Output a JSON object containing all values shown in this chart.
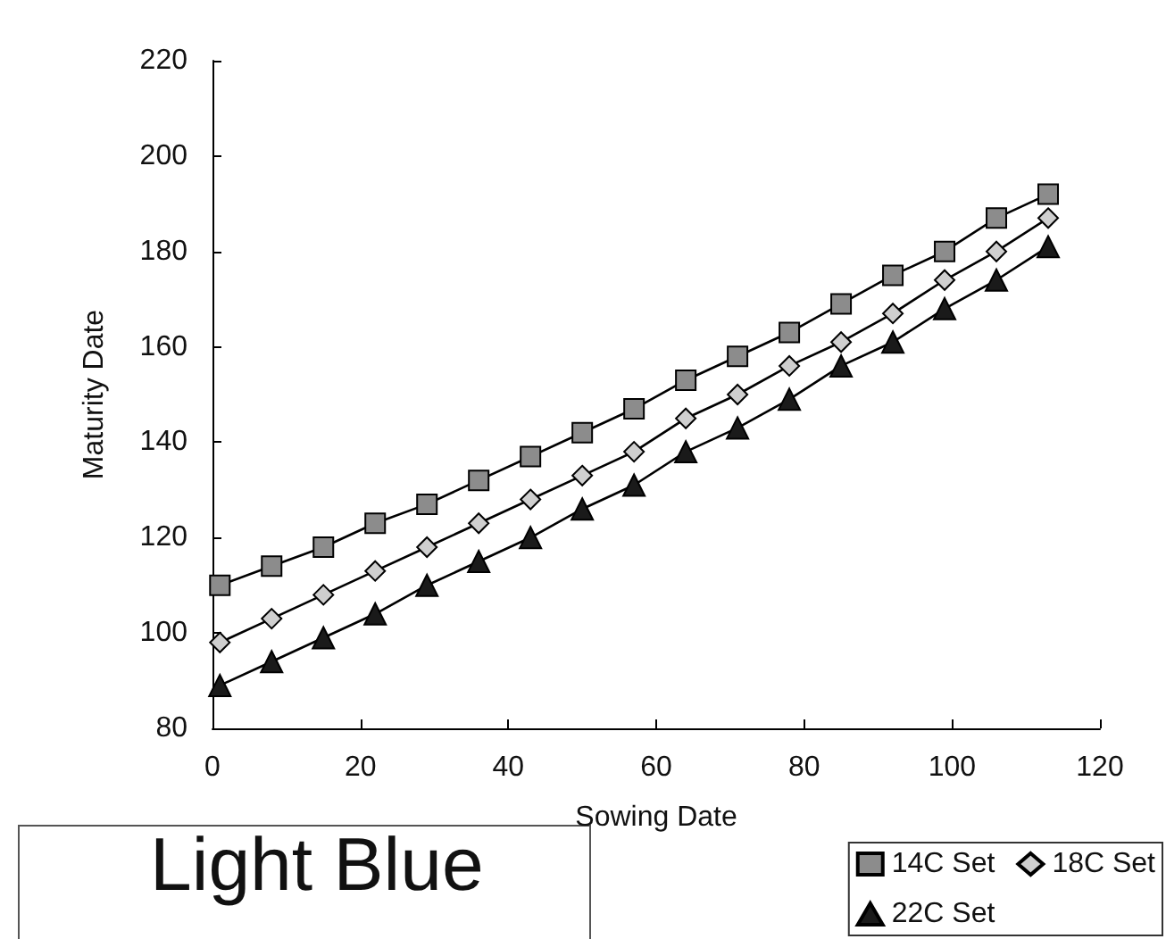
{
  "chart_data": {
    "type": "line",
    "xlabel": "Sowing Date",
    "ylabel": "Maturity Date",
    "x": [
      1,
      8,
      15,
      22,
      29,
      36,
      43,
      50,
      57,
      64,
      71,
      78,
      85,
      92,
      99,
      106,
      113
    ],
    "series": [
      {
        "name": "14C Set",
        "color": "#8c8c8c",
        "marker": "square",
        "values": [
          110,
          114,
          118,
          123,
          127,
          132,
          137,
          142,
          147,
          153,
          158,
          163,
          169,
          175,
          180,
          187,
          192
        ]
      },
      {
        "name": "18C Set",
        "color": "#cfcfcf",
        "marker": "diamond",
        "values": [
          98,
          103,
          108,
          113,
          118,
          123,
          128,
          133,
          138,
          145,
          150,
          156,
          161,
          167,
          174,
          180,
          187
        ]
      },
      {
        "name": "22C Set",
        "color": "#1a1a1a",
        "marker": "triangle",
        "values": [
          89,
          94,
          99,
          104,
          110,
          115,
          120,
          126,
          131,
          138,
          143,
          149,
          156,
          161,
          168,
          174,
          181
        ]
      }
    ],
    "xlim": [
      0,
      120
    ],
    "xticks": [
      0,
      20,
      40,
      60,
      80,
      100,
      120
    ],
    "ylim": [
      80,
      220
    ],
    "yticks": [
      80,
      100,
      120,
      140,
      160,
      180,
      200,
      220
    ],
    "grid": false,
    "legend": "bottom right",
    "line_style": "solid",
    "annotations": [
      "Light Blue"
    ]
  }
}
